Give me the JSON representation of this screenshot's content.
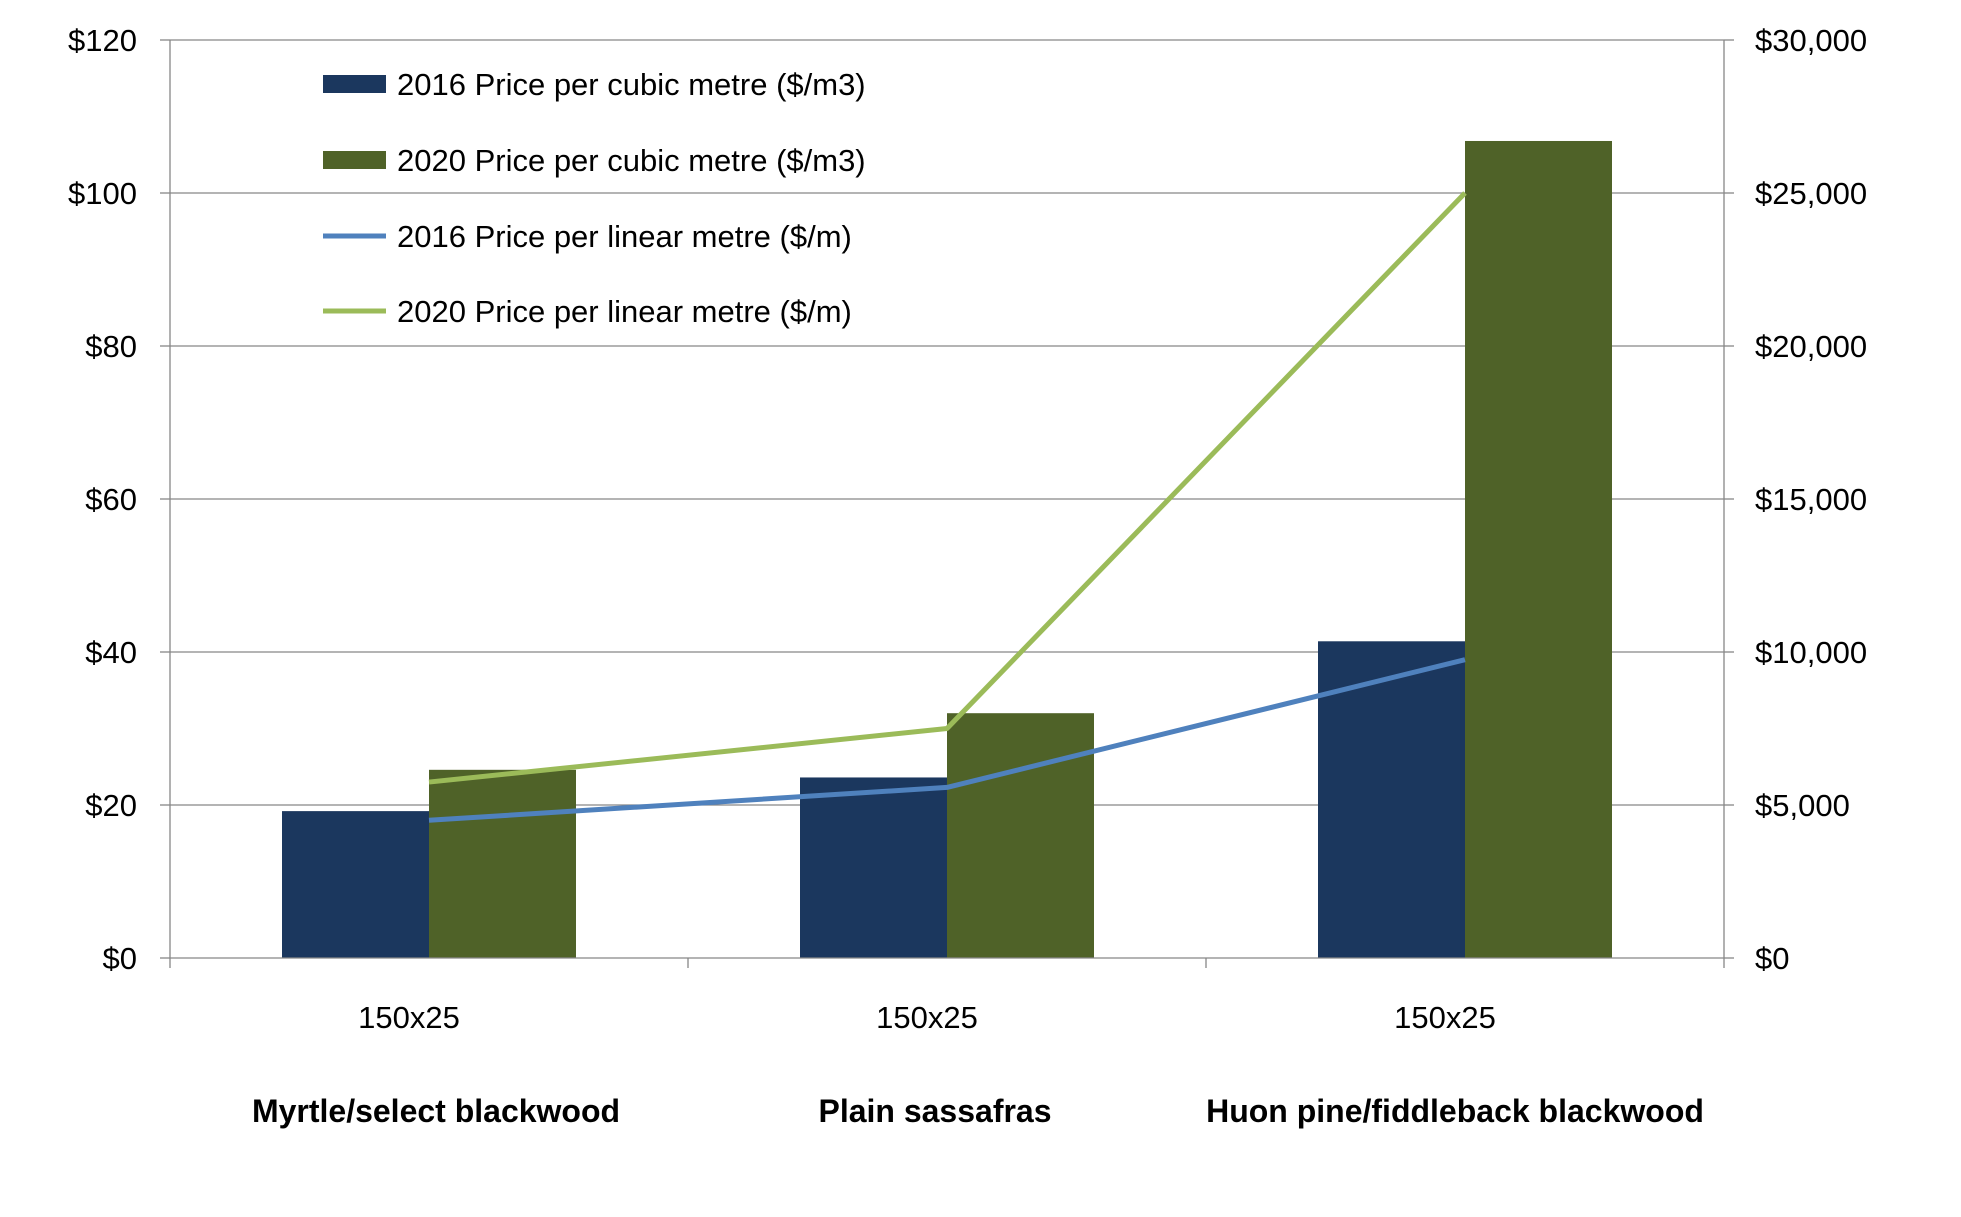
{
  "chart_data": {
    "type": "bar",
    "categories": [
      "Myrtle/select blackwood",
      "Plain sassafras",
      "Huon pine/fiddleback blackwood"
    ],
    "sizes": [
      "150x25",
      "150x25",
      "150x25"
    ],
    "left_axis": {
      "ylim": [
        0,
        120
      ],
      "ticks": [
        0,
        20,
        40,
        60,
        80,
        100,
        120
      ],
      "tick_labels": [
        "$0",
        "$20",
        "$40",
        "$60",
        "$80",
        "$100",
        "$120"
      ]
    },
    "right_axis": {
      "ylim": [
        0,
        30000
      ],
      "ticks": [
        0,
        5000,
        10000,
        15000,
        20000,
        25000,
        30000
      ],
      "tick_labels": [
        "$0",
        "$5,000",
        "$10,000",
        "$15,000",
        "$20,000",
        "$25,000",
        "$30,000"
      ]
    },
    "grid": true,
    "legend_position": "top-left",
    "series": [
      {
        "name": "2016 Price per cubic metre ($/m3)",
        "kind": "bar",
        "axis": "right",
        "color": "#1b375e",
        "values": [
          4800,
          5900,
          10350
        ]
      },
      {
        "name": "2020 Price per cubic metre ($/m3)",
        "kind": "bar",
        "axis": "right",
        "color": "#4f6228",
        "values": [
          6150,
          8000,
          26700
        ]
      },
      {
        "name": "2016 Price per linear metre ($/m)",
        "kind": "line",
        "axis": "left",
        "color": "#4f81bd",
        "values": [
          18,
          22.3,
          39
        ]
      },
      {
        "name": "2020 Price per linear metre ($/m)",
        "kind": "line",
        "axis": "left",
        "color": "#9bbb59",
        "values": [
          23,
          30,
          100
        ]
      }
    ]
  },
  "colors": {
    "grid": "#878787",
    "axis": "#878787"
  }
}
